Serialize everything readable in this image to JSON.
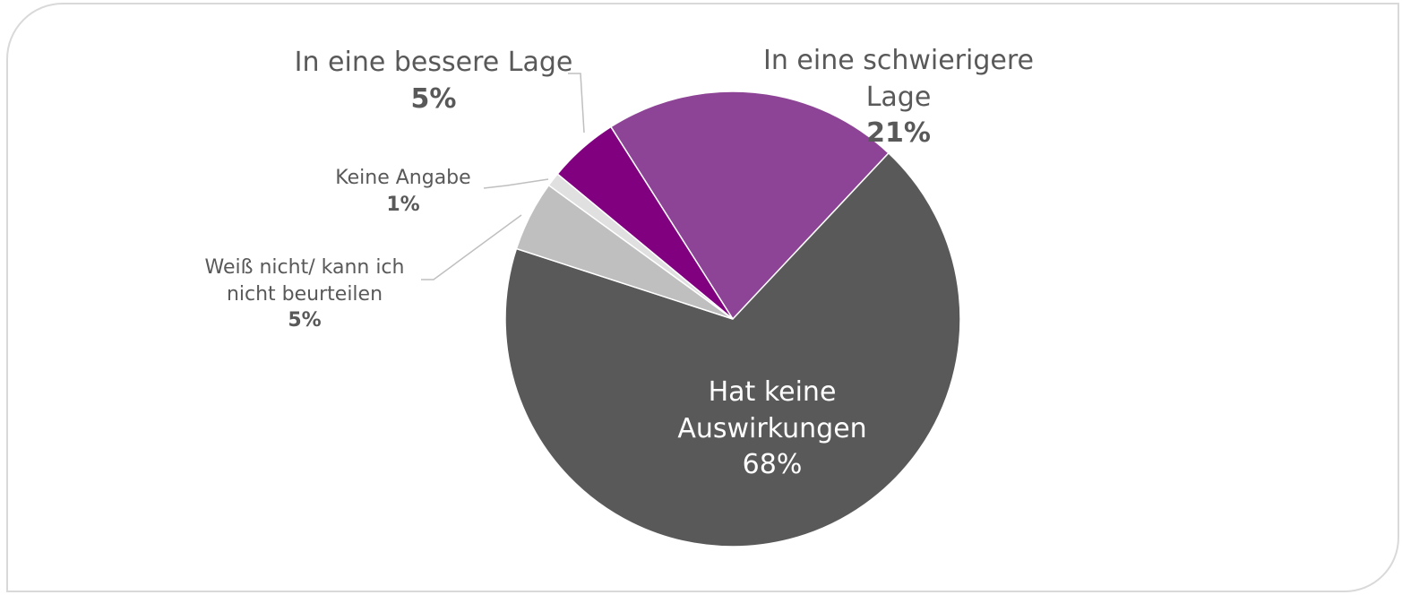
{
  "chart_data": {
    "type": "pie",
    "categories": [
      "In eine schwierigere Lage",
      "Hat keine Auswirkungen",
      "Weiß nicht/ kann ich nicht beurteilen",
      "Keine Angabe",
      "In eine bessere Lage"
    ],
    "values": [
      21,
      68,
      5,
      1,
      5
    ],
    "value_labels": [
      "21%",
      "68%",
      "5%",
      "1%",
      "5%"
    ],
    "colors": [
      "#8e4496",
      "#595959",
      "#bfbfbf",
      "#e0e0e0",
      "#800080"
    ]
  }
}
